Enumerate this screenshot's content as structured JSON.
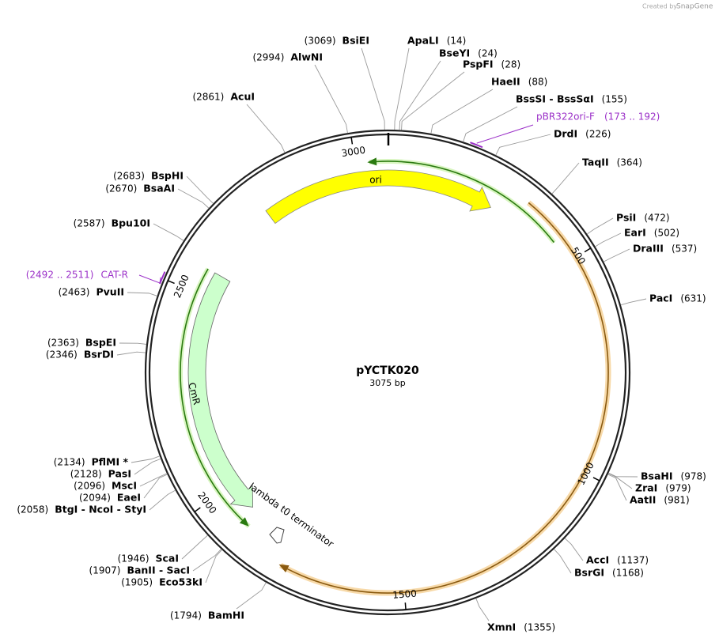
{
  "header": {
    "created_by": "Created by",
    "brand": "SnapGene"
  },
  "plasmid": {
    "name": "pYCTK020",
    "length": "3075 bp"
  },
  "ticks": [
    "500",
    "1000",
    "1500",
    "2000",
    "2500",
    "3000"
  ],
  "features": {
    "ori": "ori",
    "cmr": "CmR",
    "terminator": "lambda t0 terminator"
  },
  "primers": [
    {
      "name": "pBR322ori-F",
      "range": "(173 .. 192)"
    },
    {
      "name": "CAT-R",
      "range": "(2492 .. 2511)"
    }
  ],
  "sites": [
    {
      "name": "ApaLI",
      "position": "(14)"
    },
    {
      "name": "BseYI",
      "position": "(24)"
    },
    {
      "name": "PspFI",
      "position": "(28)"
    },
    {
      "name": "HaeII",
      "position": "(88)"
    },
    {
      "name": "BssSI - BssSαI",
      "position": "(155)"
    },
    {
      "name": "DrdI",
      "position": "(226)"
    },
    {
      "name": "TaqII",
      "position": "(364)"
    },
    {
      "name": "PsiI",
      "position": "(472)"
    },
    {
      "name": "EarI",
      "position": "(502)"
    },
    {
      "name": "DraIII",
      "position": "(537)"
    },
    {
      "name": "PacI",
      "position": "(631)"
    },
    {
      "name": "BsaHI",
      "position": "(978)"
    },
    {
      "name": "ZraI",
      "position": "(979)"
    },
    {
      "name": "AatII",
      "position": "(981)"
    },
    {
      "name": "AccI",
      "position": "(1137)"
    },
    {
      "name": "BsrGI",
      "position": "(1168)"
    },
    {
      "name": "XmnI",
      "position": "(1355)"
    },
    {
      "name": "BsiEI",
      "position": "(3069)"
    },
    {
      "name": "AlwNI",
      "position": "(2994)"
    },
    {
      "name": "AcuI",
      "position": "(2861)"
    },
    {
      "name": "BspHI",
      "position": "(2683)"
    },
    {
      "name": "BsaAI",
      "position": "(2670)"
    },
    {
      "name": "Bpu10I",
      "position": "(2587)"
    },
    {
      "name": "PvuII",
      "position": "(2463)"
    },
    {
      "name": "BspEI",
      "position": "(2363)"
    },
    {
      "name": "BsrDI",
      "position": "(2346)"
    },
    {
      "name": "PflMI *",
      "position": "(2134)"
    },
    {
      "name": "PasI",
      "position": "(2128)"
    },
    {
      "name": "MscI",
      "position": "(2096)"
    },
    {
      "name": "EaeI",
      "position": "(2094)"
    },
    {
      "name": "BtgI - NcoI - StyI",
      "position": "(2058)"
    },
    {
      "name": "ScaI",
      "position": "(1946)"
    },
    {
      "name": "BanII - SacI",
      "position": "(1907)"
    },
    {
      "name": "Eco53kI",
      "position": "(1905)"
    },
    {
      "name": "BamHI",
      "position": "(1794)"
    }
  ]
}
